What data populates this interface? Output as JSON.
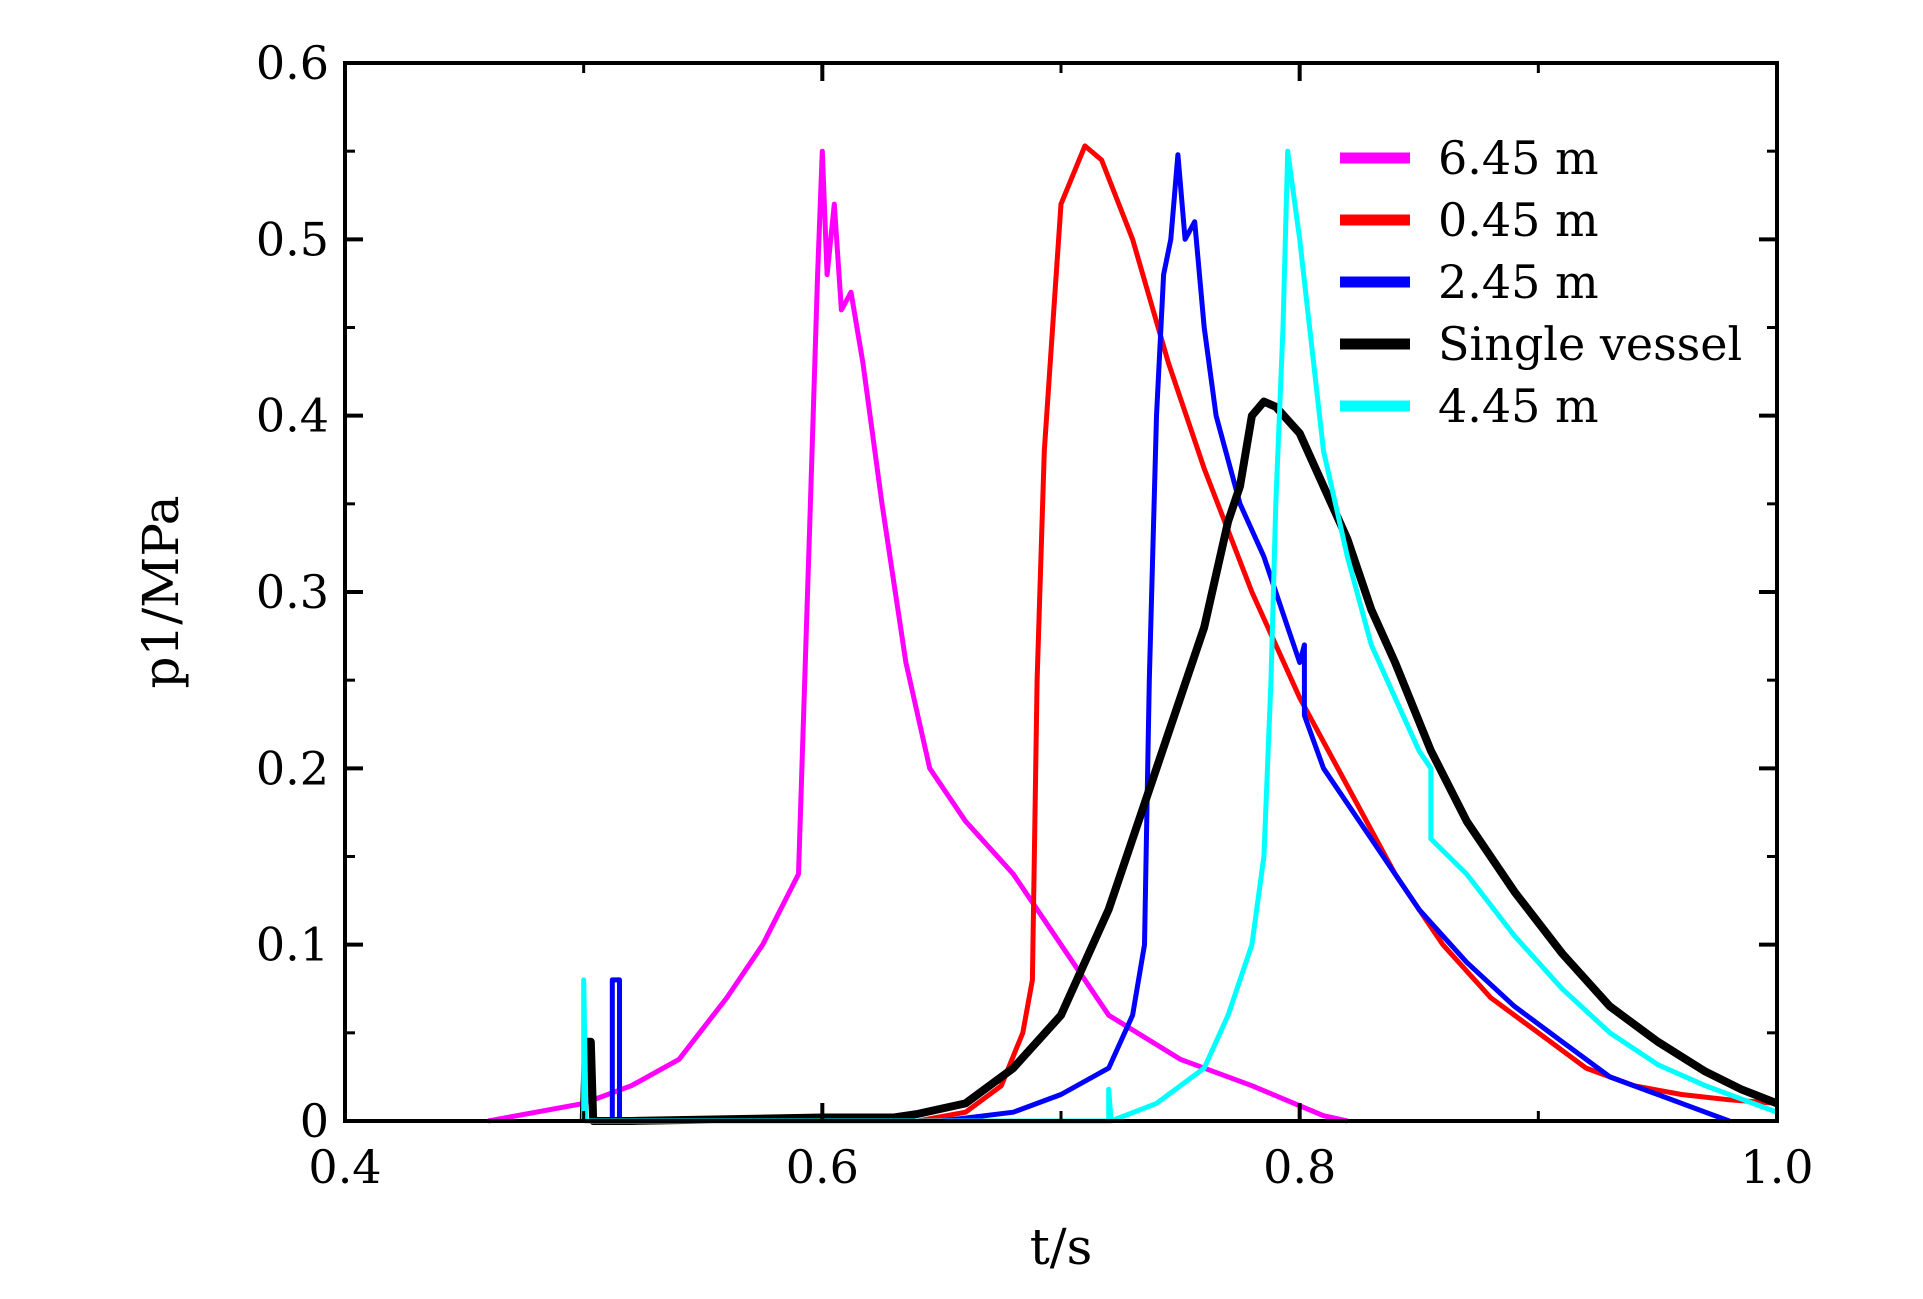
{
  "chart_data": {
    "type": "line",
    "title": "",
    "xlabel": "t/s",
    "ylabel": "p1/MPa",
    "xlim": [
      0.4,
      1.0
    ],
    "ylim": [
      0,
      0.6
    ],
    "xticks": [
      "0.4",
      "0.6",
      "0.8",
      "1.0"
    ],
    "yticks": [
      "0",
      "0.1",
      "0.2",
      "0.3",
      "0.4",
      "0.5",
      "0.6"
    ],
    "grid": false,
    "legend_position": "top-right",
    "series": [
      {
        "name": "6.45 m",
        "color": "#ff00ff",
        "points": [
          [
            0.46,
            0.0
          ],
          [
            0.48,
            0.005
          ],
          [
            0.5,
            0.01
          ],
          [
            0.52,
            0.02
          ],
          [
            0.54,
            0.035
          ],
          [
            0.56,
            0.07
          ],
          [
            0.575,
            0.1
          ],
          [
            0.59,
            0.14
          ],
          [
            0.595,
            0.35
          ],
          [
            0.598,
            0.48
          ],
          [
            0.6,
            0.55
          ],
          [
            0.602,
            0.48
          ],
          [
            0.605,
            0.52
          ],
          [
            0.608,
            0.46
          ],
          [
            0.612,
            0.47
          ],
          [
            0.617,
            0.43
          ],
          [
            0.625,
            0.35
          ],
          [
            0.635,
            0.26
          ],
          [
            0.645,
            0.2
          ],
          [
            0.66,
            0.17
          ],
          [
            0.68,
            0.14
          ],
          [
            0.7,
            0.1
          ],
          [
            0.72,
            0.06
          ],
          [
            0.75,
            0.035
          ],
          [
            0.78,
            0.02
          ],
          [
            0.81,
            0.003
          ],
          [
            0.82,
            0.0
          ]
        ]
      },
      {
        "name": "0.45 m",
        "color": "#ff0000",
        "points": [
          [
            0.64,
            0.0
          ],
          [
            0.66,
            0.005
          ],
          [
            0.675,
            0.02
          ],
          [
            0.684,
            0.05
          ],
          [
            0.688,
            0.08
          ],
          [
            0.69,
            0.25
          ],
          [
            0.693,
            0.38
          ],
          [
            0.697,
            0.46
          ],
          [
            0.7,
            0.52
          ],
          [
            0.71,
            0.553
          ],
          [
            0.717,
            0.545
          ],
          [
            0.73,
            0.5
          ],
          [
            0.745,
            0.43
          ],
          [
            0.76,
            0.37
          ],
          [
            0.78,
            0.3
          ],
          [
            0.8,
            0.24
          ],
          [
            0.82,
            0.19
          ],
          [
            0.84,
            0.14
          ],
          [
            0.86,
            0.1
          ],
          [
            0.88,
            0.07
          ],
          [
            0.9,
            0.05
          ],
          [
            0.92,
            0.03
          ],
          [
            0.94,
            0.02
          ],
          [
            0.96,
            0.015
          ],
          [
            0.98,
            0.012
          ],
          [
            1.0,
            0.01
          ]
        ]
      },
      {
        "name": "2.45 m",
        "color": "#0000ff",
        "points": [
          [
            0.505,
            0.0
          ],
          [
            0.512,
            0.0
          ],
          [
            0.512,
            0.08
          ],
          [
            0.515,
            0.08
          ],
          [
            0.515,
            0.0
          ],
          [
            0.65,
            0.0
          ],
          [
            0.68,
            0.005
          ],
          [
            0.7,
            0.015
          ],
          [
            0.72,
            0.03
          ],
          [
            0.73,
            0.06
          ],
          [
            0.735,
            0.1
          ],
          [
            0.737,
            0.25
          ],
          [
            0.74,
            0.4
          ],
          [
            0.743,
            0.48
          ],
          [
            0.746,
            0.5
          ],
          [
            0.749,
            0.548
          ],
          [
            0.752,
            0.5
          ],
          [
            0.756,
            0.51
          ],
          [
            0.76,
            0.45
          ],
          [
            0.765,
            0.4
          ],
          [
            0.775,
            0.35
          ],
          [
            0.785,
            0.32
          ],
          [
            0.795,
            0.28
          ],
          [
            0.8,
            0.26
          ],
          [
            0.802,
            0.27
          ],
          [
            0.802,
            0.23
          ],
          [
            0.81,
            0.2
          ],
          [
            0.83,
            0.16
          ],
          [
            0.85,
            0.12
          ],
          [
            0.87,
            0.09
          ],
          [
            0.89,
            0.065
          ],
          [
            0.91,
            0.045
          ],
          [
            0.93,
            0.025
          ],
          [
            0.95,
            0.015
          ],
          [
            0.97,
            0.005
          ],
          [
            0.98,
            0.0
          ]
        ]
      },
      {
        "name": "Single vessel",
        "color": "#000000",
        "points": [
          [
            0.5,
            0.0
          ],
          [
            0.501,
            0.045
          ],
          [
            0.503,
            0.045
          ],
          [
            0.504,
            0.0
          ],
          [
            0.52,
            0.0
          ],
          [
            0.6,
            0.002
          ],
          [
            0.63,
            0.002
          ],
          [
            0.64,
            0.004
          ],
          [
            0.66,
            0.01
          ],
          [
            0.68,
            0.03
          ],
          [
            0.7,
            0.06
          ],
          [
            0.72,
            0.12
          ],
          [
            0.74,
            0.2
          ],
          [
            0.76,
            0.28
          ],
          [
            0.77,
            0.34
          ],
          [
            0.775,
            0.36
          ],
          [
            0.78,
            0.4
          ],
          [
            0.785,
            0.408
          ],
          [
            0.79,
            0.405
          ],
          [
            0.8,
            0.39
          ],
          [
            0.81,
            0.36
          ],
          [
            0.82,
            0.33
          ],
          [
            0.83,
            0.29
          ],
          [
            0.84,
            0.26
          ],
          [
            0.855,
            0.21
          ],
          [
            0.87,
            0.17
          ],
          [
            0.89,
            0.13
          ],
          [
            0.91,
            0.095
          ],
          [
            0.93,
            0.065
          ],
          [
            0.95,
            0.045
          ],
          [
            0.97,
            0.028
          ],
          [
            0.985,
            0.018
          ],
          [
            1.0,
            0.01
          ]
        ]
      },
      {
        "name": "4.45 m",
        "color": "#00ffff",
        "points": [
          [
            0.5,
            0.0
          ],
          [
            0.5,
            0.08
          ],
          [
            0.501,
            0.0
          ],
          [
            0.72,
            0.0
          ],
          [
            0.72,
            0.018
          ],
          [
            0.721,
            0.0
          ],
          [
            0.74,
            0.01
          ],
          [
            0.76,
            0.03
          ],
          [
            0.77,
            0.06
          ],
          [
            0.78,
            0.1
          ],
          [
            0.785,
            0.15
          ],
          [
            0.788,
            0.25
          ],
          [
            0.79,
            0.35
          ],
          [
            0.793,
            0.45
          ],
          [
            0.795,
            0.55
          ],
          [
            0.8,
            0.5
          ],
          [
            0.805,
            0.44
          ],
          [
            0.81,
            0.38
          ],
          [
            0.82,
            0.32
          ],
          [
            0.83,
            0.27
          ],
          [
            0.84,
            0.24
          ],
          [
            0.85,
            0.21
          ],
          [
            0.855,
            0.2
          ],
          [
            0.855,
            0.16
          ],
          [
            0.87,
            0.14
          ],
          [
            0.89,
            0.105
          ],
          [
            0.91,
            0.075
          ],
          [
            0.93,
            0.05
          ],
          [
            0.95,
            0.032
          ],
          [
            0.97,
            0.02
          ],
          [
            0.99,
            0.01
          ],
          [
            1.0,
            0.005
          ]
        ]
      }
    ]
  }
}
